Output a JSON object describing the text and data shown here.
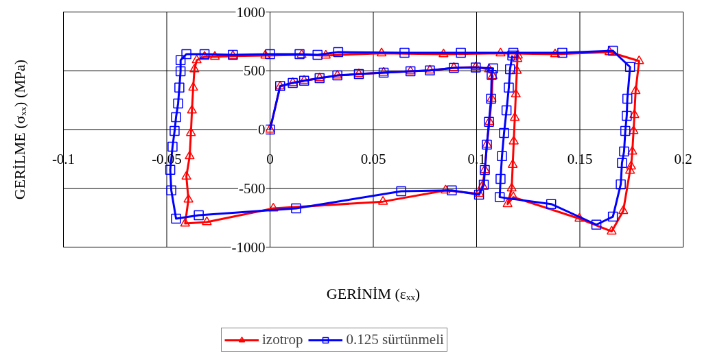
{
  "chart_data": {
    "type": "line",
    "xlabel": "GERİNİM (εₓₓ)",
    "ylabel": "GERİLME (σₓₓ) (MPa)",
    "xlim": [
      -0.1,
      0.2
    ],
    "ylim": [
      -1000,
      1000
    ],
    "xticks": [
      -0.1,
      -0.05,
      0,
      0.05,
      0.1,
      0.15,
      0.2
    ],
    "yticks": [
      -1000,
      -500,
      0,
      500,
      1000
    ],
    "grid": true,
    "legend": "bottom",
    "line_style": "solid",
    "series": [
      {
        "name": "izotrop",
        "color": "#ff0000",
        "marker": "triangle",
        "x": [
          0,
          0.0049,
          0.011,
          0.0165,
          0.024,
          0.0326,
          0.043,
          0.055,
          0.068,
          0.0774,
          0.089,
          0.0996,
          0.106,
          0.1078,
          0.1073,
          0.1062,
          0.105,
          0.104,
          0.1029,
          0.1012,
          0.085,
          0.0547,
          0.0016,
          -0.0306,
          -0.0411,
          -0.0395,
          -0.0405,
          -0.0389,
          -0.0383,
          -0.0378,
          -0.0372,
          -0.0366,
          -0.0355,
          -0.0317,
          -0.0267,
          -0.018,
          -0.0023,
          0.0153,
          0.027,
          0.054,
          0.084,
          0.1116,
          0.138,
          0.1643,
          0.1787,
          0.177,
          0.1764,
          0.176,
          0.1754,
          0.1748,
          0.1743,
          0.171,
          0.1654,
          0.1498,
          0.1178,
          0.115,
          0.117,
          0.1175,
          0.118,
          0.1185,
          0.119,
          0.1195,
          0.1198,
          0.12
        ],
        "values": [
          0,
          367,
          397,
          416,
          437,
          460,
          472,
          484,
          495,
          503,
          525,
          532,
          513,
          455,
          262,
          66,
          -128,
          -344,
          -478,
          -546,
          -517,
          -613,
          -671,
          -787,
          -799,
          -595,
          -400,
          -226,
          -29,
          163,
          357,
          513,
          590,
          620,
          620,
          626,
          630,
          635,
          630,
          649,
          641,
          649,
          641,
          659,
          583,
          328,
          124,
          -12,
          -187,
          -313,
          -350,
          -692,
          -867,
          -758,
          -575,
          -634,
          -500,
          -300,
          -100,
          100,
          300,
          500,
          600,
          630
        ]
      },
      {
        "name": "0.125 sürtünmeli",
        "color": "#0000ff",
        "marker": "square",
        "x": [
          0,
          0.0049,
          0.011,
          0.0165,
          0.024,
          0.0326,
          0.043,
          0.055,
          0.068,
          0.0774,
          0.089,
          0.0996,
          0.108,
          0.1073,
          0.107,
          0.106,
          0.105,
          0.104,
          0.1035,
          0.1012,
          0.088,
          0.0635,
          0.0126,
          -0.0345,
          -0.0455,
          -0.0478,
          -0.0483,
          -0.0472,
          -0.0462,
          -0.0455,
          -0.0445,
          -0.0439,
          -0.0433,
          -0.0433,
          -0.0405,
          -0.0317,
          -0.018,
          0,
          0.0143,
          0.023,
          0.033,
          0.0651,
          0.0924,
          0.1178,
          0.1415,
          0.166,
          0.1743,
          0.173,
          0.1727,
          0.172,
          0.1714,
          0.1704,
          0.1698,
          0.166,
          0.158,
          0.1361,
          0.1112,
          0.1116,
          0.1123,
          0.1133,
          0.1145,
          0.1156,
          0.1162,
          0.1173
        ],
        "values": [
          0,
          370,
          397,
          416,
          437,
          460,
          472,
          484,
          495,
          503,
          525,
          528,
          520,
          465,
          262,
          66,
          -128,
          -344,
          -470,
          -554,
          -517,
          -525,
          -671,
          -729,
          -758,
          -517,
          -342,
          -146,
          -12,
          105,
          222,
          357,
          496,
          590,
          641,
          641,
          635,
          641,
          641,
          635,
          659,
          653,
          653,
          653,
          653,
          670,
          532,
          262,
          117,
          -12,
          -187,
          -284,
          -466,
          -741,
          -809,
          -634,
          -575,
          -420,
          -226,
          -29,
          163,
          357,
          513,
          630
        ]
      }
    ]
  }
}
